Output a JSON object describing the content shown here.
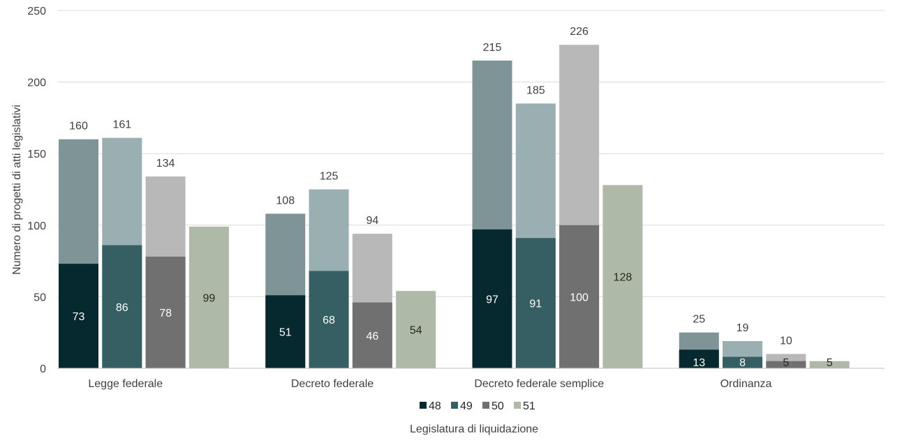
{
  "chart_data": {
    "type": "bar",
    "stacked_overlay": true,
    "title": "",
    "ylabel": "Numero di progetti di atti legislativi",
    "xlabel": "Legislatura di liquidazione",
    "ylim": [
      0,
      250
    ],
    "yticks": [
      0,
      50,
      100,
      150,
      200,
      250
    ],
    "grid": true,
    "legend_position": "bottom",
    "categories": [
      "Legge federale",
      "Decreto federale",
      "Decreto federale semplice",
      "Ordinanza"
    ],
    "series": [
      {
        "name": "48",
        "color": "#06292f",
        "light_color": "#7f9497",
        "values": [
          73,
          51,
          97,
          13
        ],
        "totals": [
          160,
          108,
          215,
          25
        ]
      },
      {
        "name": "49",
        "color": "#365f63",
        "light_color": "#9aafb1",
        "values": [
          86,
          68,
          91,
          8
        ],
        "totals": [
          161,
          125,
          185,
          19
        ]
      },
      {
        "name": "50",
        "color": "#707070",
        "light_color": "#b8b8b8",
        "values": [
          78,
          46,
          100,
          5
        ],
        "totals": [
          134,
          94,
          226,
          10
        ]
      },
      {
        "name": "51",
        "color": "#aeb9a7",
        "light_color": "#aeb9a7",
        "values": [
          99,
          54,
          128,
          5
        ],
        "totals": [
          null,
          null,
          null,
          null
        ]
      }
    ]
  }
}
